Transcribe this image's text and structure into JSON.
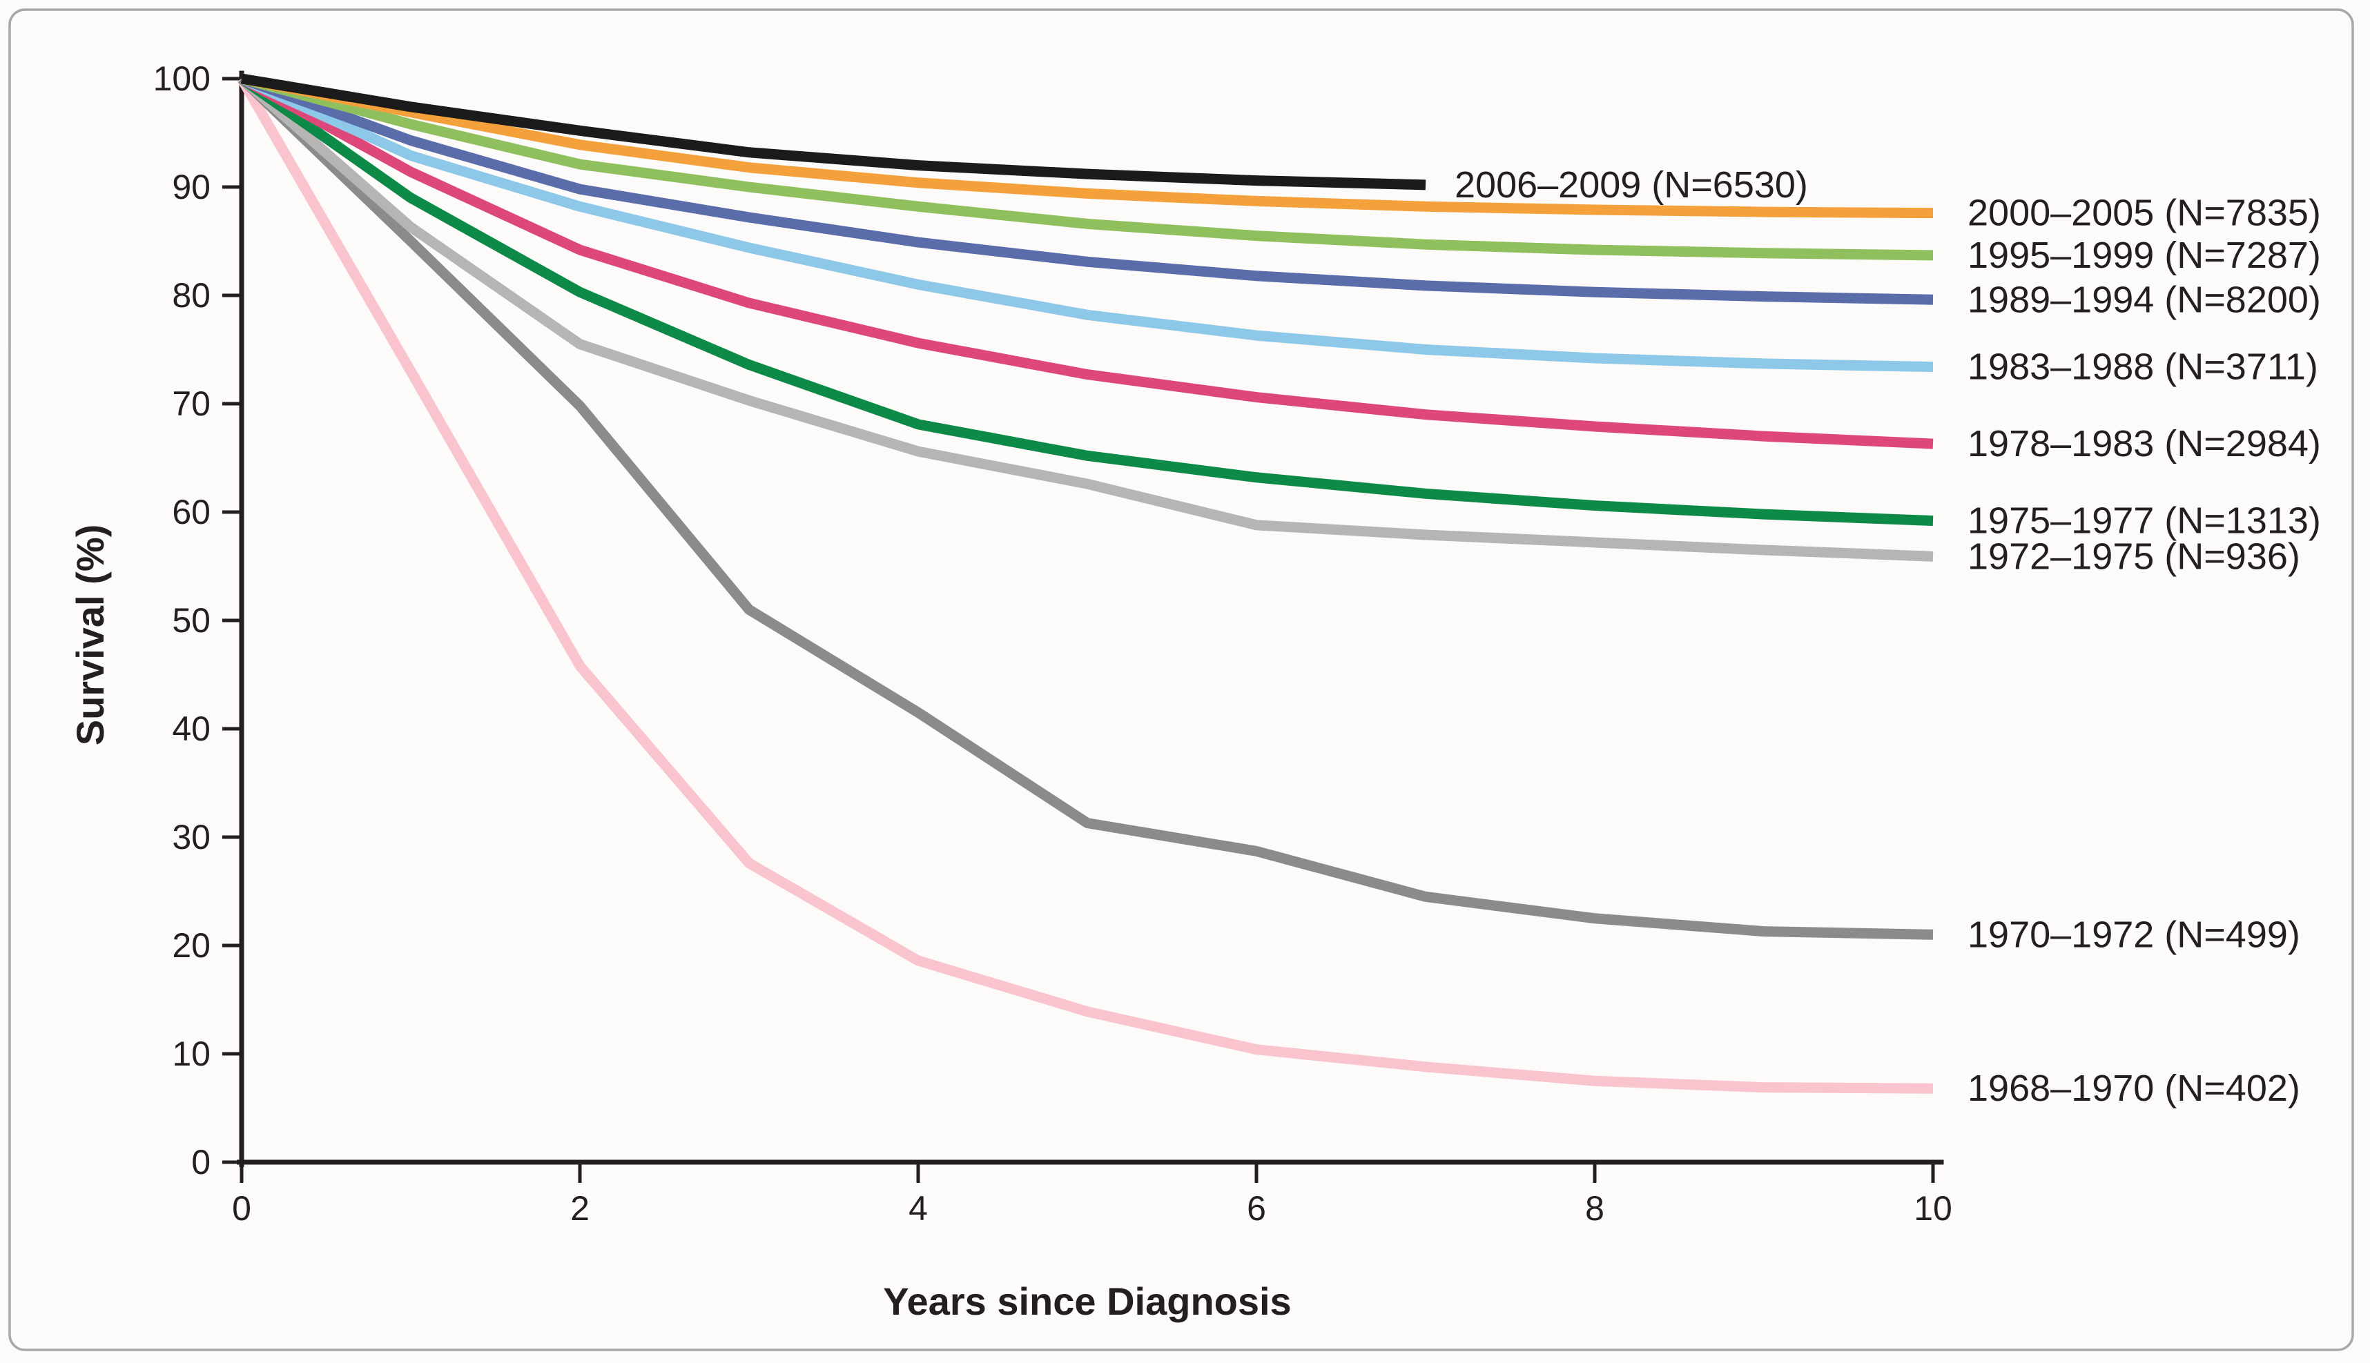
{
  "figure": {
    "background_color": "#fcfbf9",
    "border_color": "#a8a8a8"
  },
  "chart_data": {
    "type": "line",
    "title": "",
    "xlabel": "Years since Diagnosis",
    "ylabel": "Survival (%)",
    "xlim": [
      0,
      10
    ],
    "ylim": [
      0,
      100
    ],
    "x_ticks": [
      0,
      2,
      4,
      6,
      8,
      10
    ],
    "y_ticks": [
      0,
      10,
      20,
      30,
      40,
      50,
      60,
      70,
      80,
      90,
      100
    ],
    "grid": false,
    "legend_position": "labels-at-curve-ends",
    "axis_color": "#231f20",
    "text_color": "#231f20",
    "x_years": [
      0,
      1,
      2,
      3,
      4,
      5,
      6,
      7,
      8,
      9,
      10
    ],
    "series": [
      {
        "period": "2006–2009",
        "n": 6530,
        "label": "2006–2009 (N=6530)",
        "color": "#1b1b1b",
        "label_placement": "inline",
        "values": [
          100,
          97.4,
          95.2,
          93.2,
          92.0,
          91.2,
          90.6,
          90.2
        ]
      },
      {
        "period": "2000–2005",
        "n": 7835,
        "label": "2000–2005 (N=7835)",
        "color": "#f4a13b",
        "label_placement": "right",
        "values": [
          100,
          96.9,
          93.9,
          91.8,
          90.4,
          89.4,
          88.7,
          88.2,
          87.9,
          87.7,
          87.6
        ]
      },
      {
        "period": "1995–1999",
        "n": 7287,
        "label": "1995–1999 (N=7287)",
        "color": "#90c05e",
        "label_placement": "right",
        "values": [
          100,
          95.8,
          92.1,
          90.0,
          88.2,
          86.6,
          85.5,
          84.7,
          84.2,
          83.9,
          83.7
        ]
      },
      {
        "period": "1989–1994",
        "n": 8200,
        "label": "1989–1994 (N=8200)",
        "color": "#5b6cab",
        "label_placement": "right",
        "values": [
          100,
          94.3,
          89.8,
          87.2,
          84.9,
          83.1,
          81.8,
          80.9,
          80.3,
          79.9,
          79.6
        ]
      },
      {
        "period": "1983–1988",
        "n": 3711,
        "label": "1983–1988 (N=3711)",
        "color": "#8ec8e9",
        "label_placement": "right",
        "values": [
          100,
          92.9,
          88.2,
          84.4,
          81.0,
          78.2,
          76.3,
          75.0,
          74.2,
          73.7,
          73.4
        ]
      },
      {
        "period": "1978–1983",
        "n": 2984,
        "label": "1978–1983 (N=2984)",
        "color": "#de4779",
        "label_placement": "right",
        "values": [
          100,
          91.4,
          84.2,
          79.3,
          75.6,
          72.7,
          70.6,
          69.0,
          67.9,
          67.0,
          66.3
        ]
      },
      {
        "period": "1975–1977",
        "n": 1313,
        "label": "1975–1977 (N=1313)",
        "color": "#0d8a47",
        "label_placement": "right",
        "values": [
          100,
          89.0,
          80.3,
          73.6,
          68.1,
          65.2,
          63.2,
          61.7,
          60.6,
          59.8,
          59.2
        ]
      },
      {
        "period": "1972–1975",
        "n": 936,
        "label": "1972–1975 (N=936)",
        "color": "#b5b5b4",
        "label_placement": "right",
        "values": [
          100,
          86.3,
          75.5,
          70.3,
          65.6,
          62.6,
          58.8,
          57.9,
          57.2,
          56.5,
          55.9
        ]
      },
      {
        "period": "1970–1972",
        "n": 499,
        "label": "1970–1972 (N=499)",
        "color": "#8b8b8b",
        "label_placement": "right",
        "values": [
          100,
          85.0,
          69.8,
          51.0,
          41.5,
          31.3,
          28.7,
          24.5,
          22.5,
          21.3,
          21.0
        ]
      },
      {
        "period": "1968–1970",
        "n": 402,
        "label": "1968–1970 (N=402)",
        "color": "#f9c4ce",
        "label_placement": "right",
        "values": [
          100,
          73.0,
          45.8,
          27.6,
          18.6,
          13.9,
          10.4,
          8.8,
          7.5,
          6.9,
          6.8
        ]
      }
    ]
  }
}
